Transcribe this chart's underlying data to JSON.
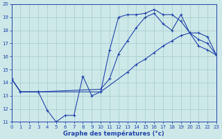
{
  "xlabel": "Graphe des températures (°c)",
  "bg_color": "#cce8e8",
  "grid_color": "#aad0d0",
  "line_color": "#2244aa",
  "xlim": [
    0,
    23
  ],
  "ylim": [
    11,
    20
  ],
  "xticks": [
    0,
    1,
    2,
    3,
    4,
    5,
    6,
    7,
    8,
    9,
    10,
    11,
    12,
    13,
    14,
    15,
    16,
    17,
    18,
    19,
    20,
    21,
    22,
    23
  ],
  "yticks": [
    11,
    12,
    13,
    14,
    15,
    16,
    17,
    18,
    19,
    20
  ],
  "curve1_x": [
    0,
    1,
    3,
    4,
    5,
    6,
    7,
    8,
    9,
    10,
    11,
    12,
    13,
    14,
    15,
    16,
    17,
    18,
    19,
    20,
    21,
    22,
    23
  ],
  "curve1_y": [
    14.3,
    13.3,
    13.3,
    11.9,
    11.0,
    11.5,
    11.5,
    14.5,
    13.0,
    13.3,
    16.5,
    19.0,
    19.2,
    19.2,
    19.3,
    19.6,
    19.2,
    19.2,
    18.7,
    17.8,
    17.3,
    17.0,
    16.1
  ],
  "curve2_x": [
    0,
    1,
    3,
    10,
    11,
    12,
    13,
    14,
    15,
    16,
    17,
    18,
    19,
    20,
    21,
    22,
    23
  ],
  "curve2_y": [
    14.3,
    13.3,
    13.3,
    13.5,
    14.3,
    16.2,
    17.2,
    18.2,
    19.0,
    19.3,
    18.5,
    18.0,
    19.2,
    17.8,
    17.8,
    17.5,
    16.1
  ],
  "curve3_x": [
    0,
    1,
    3,
    10,
    13,
    14,
    15,
    16,
    17,
    18,
    19,
    20,
    21,
    22,
    23
  ],
  "curve3_y": [
    14.3,
    13.3,
    13.3,
    13.3,
    14.8,
    15.4,
    15.8,
    16.3,
    16.8,
    17.2,
    17.6,
    17.8,
    16.8,
    16.5,
    16.1
  ]
}
